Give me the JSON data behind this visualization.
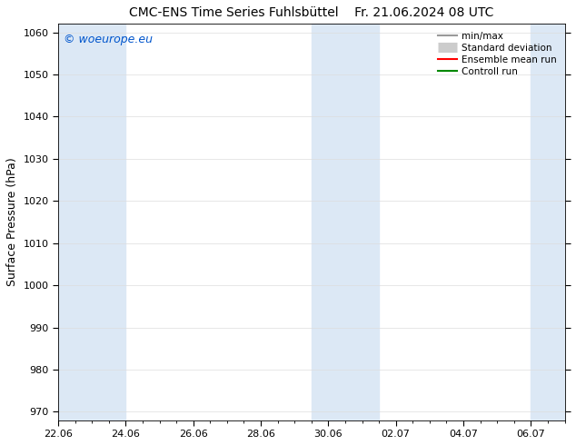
{
  "title_left": "CMC-ENS Time Series Fuhlsbüttel",
  "title_right": "Fr. 21.06.2024 08 UTC",
  "ylabel": "Surface Pressure (hPa)",
  "ylim": [
    968,
    1062
  ],
  "yticks": [
    970,
    980,
    990,
    1000,
    1010,
    1020,
    1030,
    1040,
    1050,
    1060
  ],
  "xlim": [
    0,
    15
  ],
  "x_tick_positions": [
    0,
    2,
    4,
    6,
    8,
    10,
    12,
    14
  ],
  "x_tick_labels": [
    "22.06",
    "24.06",
    "26.06",
    "28.06",
    "30.06",
    "02.07",
    "04.07",
    "06.07"
  ],
  "shaded_bands": [
    {
      "start": 0,
      "end": 2
    },
    {
      "start": 7.5,
      "end": 9.5
    },
    {
      "start": 14,
      "end": 15
    }
  ],
  "band_color": "#dce8f5",
  "watermark": "© woeurope.eu",
  "watermark_color": "#0055cc",
  "legend_items": [
    {
      "label": "min/max",
      "type": "line",
      "color": "#999999",
      "lw": 1.5
    },
    {
      "label": "Standard deviation",
      "type": "band",
      "color": "#cccccc"
    },
    {
      "label": "Ensemble mean run",
      "type": "line",
      "color": "#ff0000",
      "lw": 1.5
    },
    {
      "label": "Controll run",
      "type": "line",
      "color": "#008800",
      "lw": 1.5
    }
  ],
  "background_color": "#ffffff",
  "title_fontsize": 10,
  "ylabel_fontsize": 9,
  "tick_fontsize": 8,
  "legend_fontsize": 7.5,
  "watermark_fontsize": 9
}
